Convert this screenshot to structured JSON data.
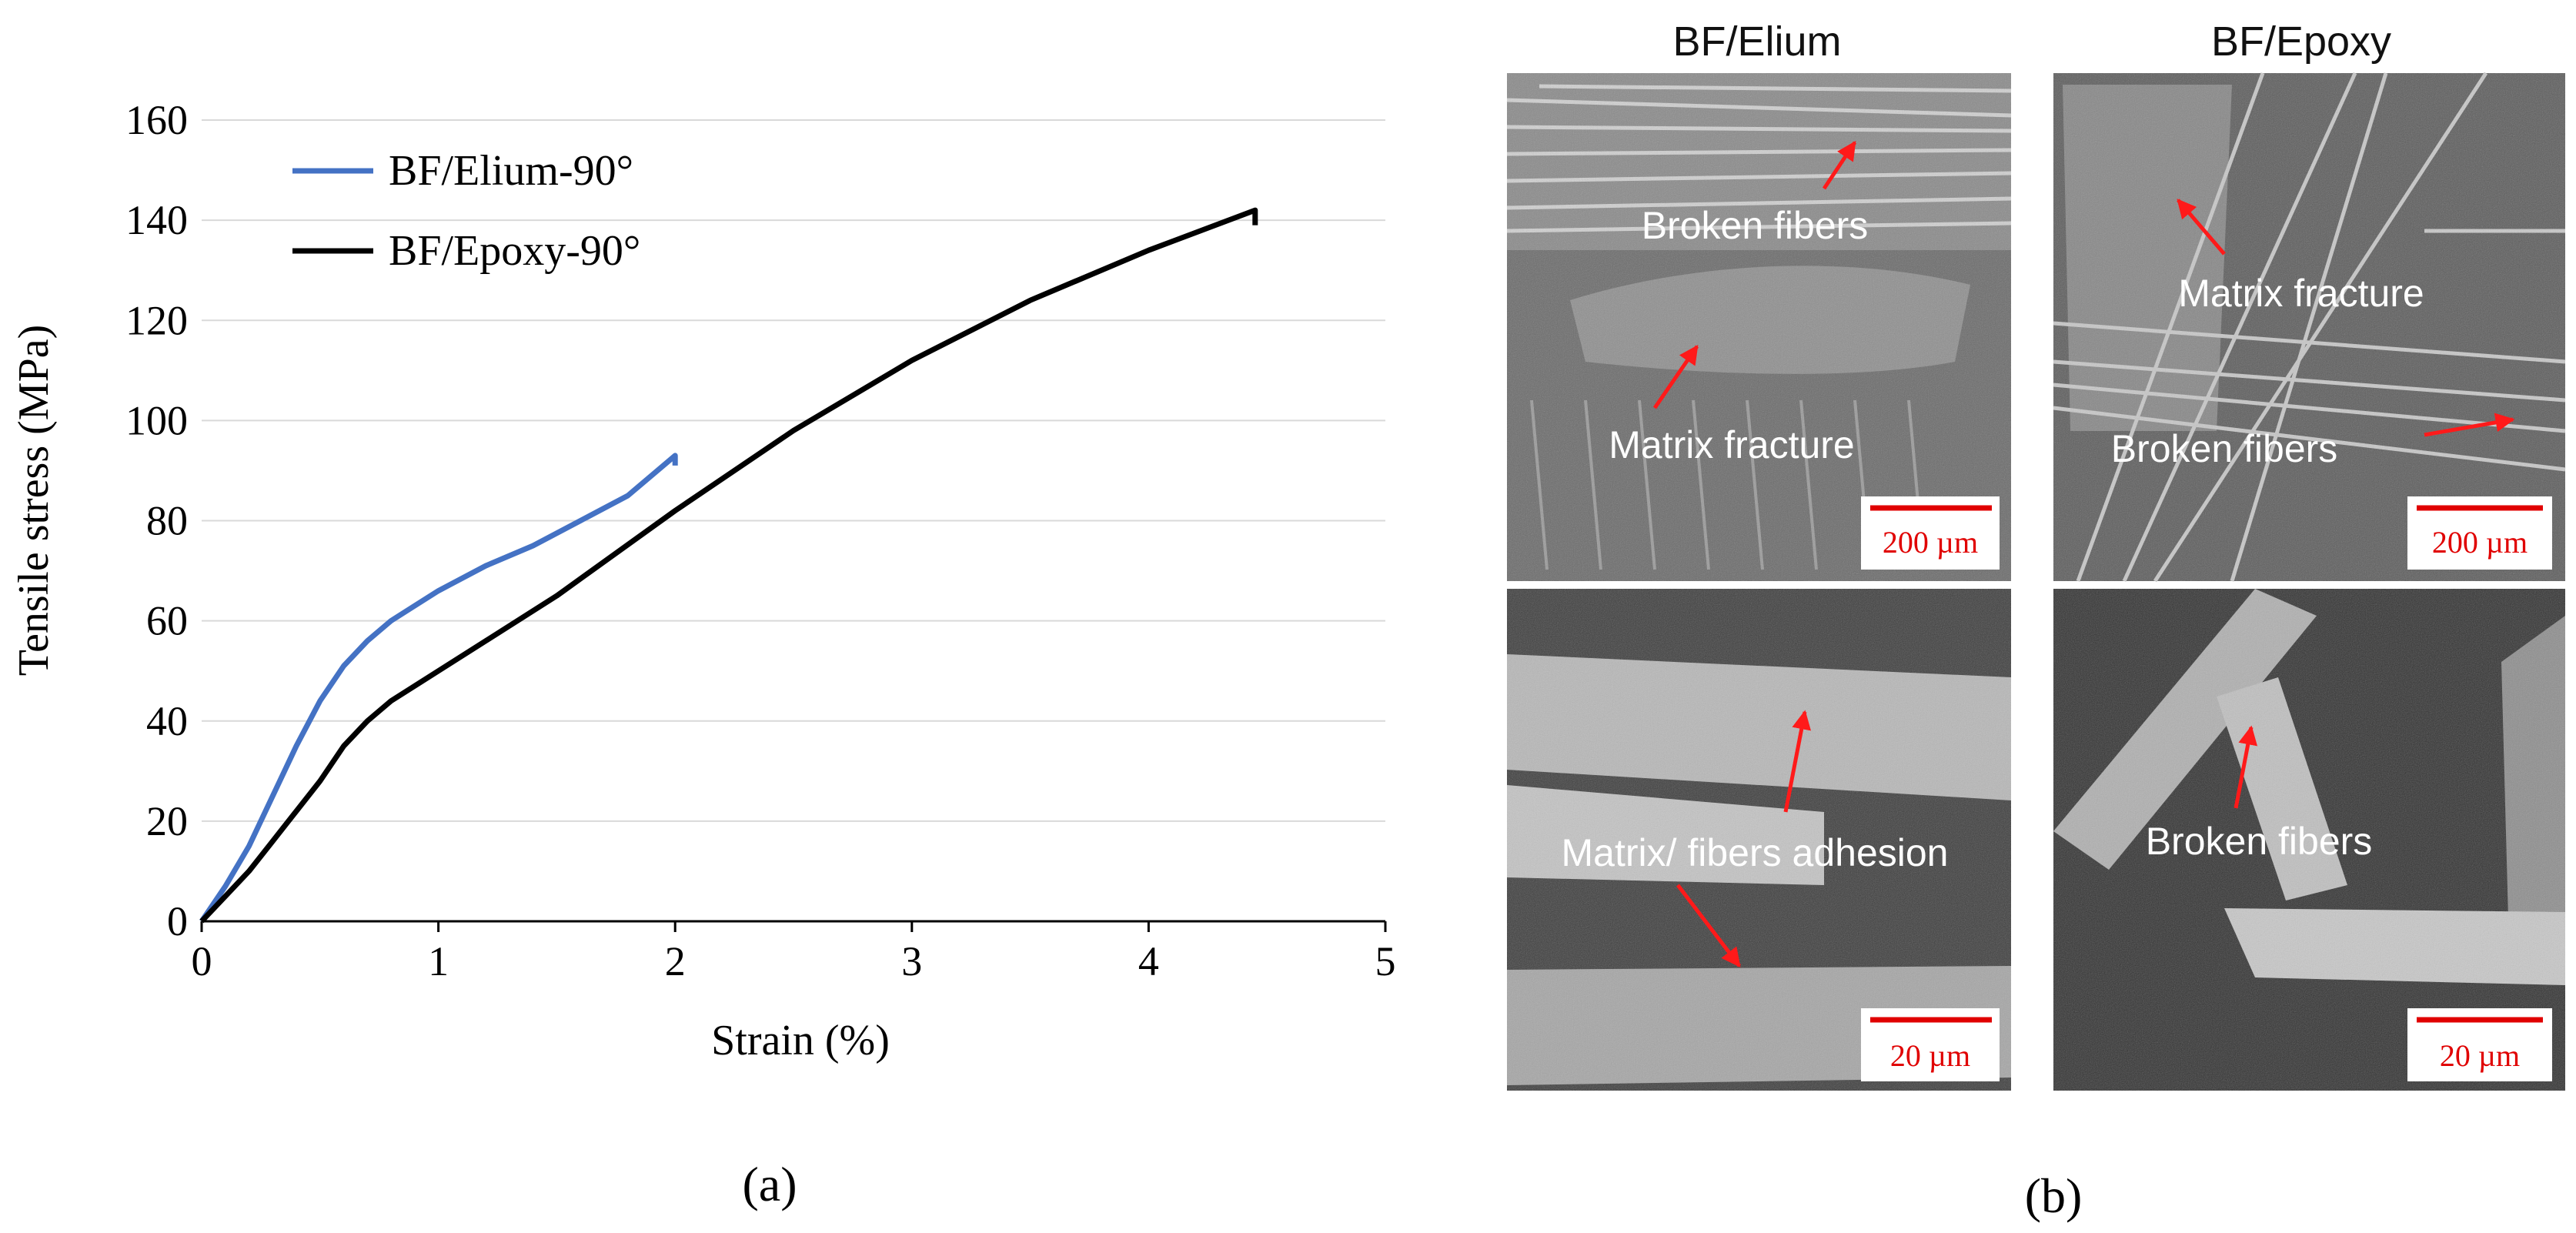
{
  "chart_data": {
    "type": "line",
    "xlabel": "Strain (%)",
    "ylabel": "Tensile stress (MPa)",
    "xlim": [
      0,
      5
    ],
    "ylim": [
      0,
      160
    ],
    "xticks": [
      0,
      1,
      2,
      3,
      4,
      5
    ],
    "yticks": [
      0,
      20,
      40,
      60,
      80,
      100,
      120,
      140,
      160
    ],
    "grid": "horizontal",
    "legend_position": "top-left",
    "series": [
      {
        "name": "BF/Elium-90°",
        "color": "#4472c4",
        "points": [
          [
            0,
            0
          ],
          [
            0.1,
            7
          ],
          [
            0.2,
            15
          ],
          [
            0.3,
            25
          ],
          [
            0.4,
            35
          ],
          [
            0.5,
            44
          ],
          [
            0.6,
            51
          ],
          [
            0.7,
            56
          ],
          [
            0.8,
            60
          ],
          [
            0.9,
            63
          ],
          [
            1.0,
            66
          ],
          [
            1.2,
            71
          ],
          [
            1.4,
            75
          ],
          [
            1.6,
            80
          ],
          [
            1.8,
            85
          ],
          [
            2.0,
            93
          ],
          [
            2.0,
            91
          ]
        ]
      },
      {
        "name": "BF/Epoxy-90°",
        "color": "#000000",
        "points": [
          [
            0,
            0
          ],
          [
            0.1,
            5
          ],
          [
            0.2,
            10
          ],
          [
            0.3,
            16
          ],
          [
            0.4,
            22
          ],
          [
            0.5,
            28
          ],
          [
            0.6,
            35
          ],
          [
            0.7,
            40
          ],
          [
            0.8,
            44
          ],
          [
            1.0,
            50
          ],
          [
            1.2,
            56
          ],
          [
            1.5,
            65
          ],
          [
            2.0,
            82
          ],
          [
            2.5,
            98
          ],
          [
            3.0,
            112
          ],
          [
            3.5,
            124
          ],
          [
            4.0,
            134
          ],
          [
            4.45,
            142
          ],
          [
            4.45,
            139
          ]
        ]
      }
    ]
  },
  "panel_labels": {
    "a": "(a)",
    "b": "(b)"
  },
  "sem": {
    "col1_title": "BF/Elium",
    "col2_title": "BF/Epoxy",
    "tl_label1": "Broken fibers",
    "tl_label2": "Matrix fracture",
    "tl_scale": "200 µm",
    "tr_label1": "Matrix fracture",
    "tr_label2": "Broken fibers",
    "tr_scale": "200 µm",
    "bl_label1": "Matrix/ fibers adhesion",
    "bl_scale": "20 µm",
    "br_label1": "Broken fibers",
    "br_scale": "20 µm"
  }
}
